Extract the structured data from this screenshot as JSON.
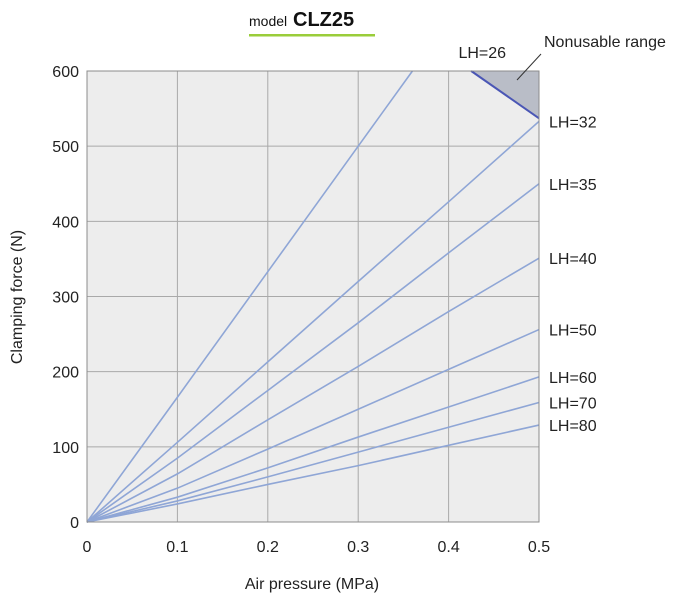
{
  "title": {
    "prefix": "model",
    "main": "CLZ25",
    "underline_color": "#9ACD3A"
  },
  "colors": {
    "plot_bg": "#EDEDED",
    "grid": "#A9A9A9",
    "line": "#8FA6D6",
    "boundary": "#4A56B5",
    "nonusable": "#B9BDC7"
  },
  "annotation": {
    "label": "Nonusable range"
  },
  "chart_data": {
    "type": "line",
    "title": "model CLZ25",
    "xlabel": "Air pressure  (MPa)",
    "ylabel": "Clamping force  (N)",
    "xlim": [
      0,
      0.5
    ],
    "ylim": [
      0,
      600
    ],
    "xticks": [
      "0",
      "0.1",
      "0.2",
      "0.3",
      "0.4",
      "0.5"
    ],
    "yticks": [
      "0",
      "100",
      "200",
      "300",
      "400",
      "500",
      "600"
    ],
    "grid": true,
    "series": [
      {
        "name": "LH=26",
        "x": [
          0,
          0.05,
          0.1,
          0.2,
          0.3,
          0.36
        ],
        "y": [
          0,
          83,
          166,
          333,
          500,
          600
        ]
      },
      {
        "name": "LH=32",
        "x": [
          0,
          0.1,
          0.2,
          0.3,
          0.4,
          0.5
        ],
        "y": [
          0,
          106,
          213,
          320,
          426,
          533
        ]
      },
      {
        "name": "LH=35",
        "x": [
          0,
          0.1,
          0.2,
          0.3,
          0.4,
          0.5
        ],
        "y": [
          0,
          85,
          175,
          265,
          358,
          450
        ]
      },
      {
        "name": "LH=40",
        "x": [
          0,
          0.1,
          0.2,
          0.3,
          0.4,
          0.5
        ],
        "y": [
          0,
          64,
          136,
          207,
          280,
          351
        ]
      },
      {
        "name": "LH=50",
        "x": [
          0,
          0.1,
          0.2,
          0.3,
          0.4,
          0.5
        ],
        "y": [
          0,
          45,
          97,
          150,
          203,
          256
        ]
      },
      {
        "name": "LH=60",
        "x": [
          0,
          0.1,
          0.2,
          0.3,
          0.4,
          0.5
        ],
        "y": [
          0,
          33,
          72,
          113,
          153,
          193
        ]
      },
      {
        "name": "LH=70",
        "x": [
          0,
          0.1,
          0.2,
          0.3,
          0.4,
          0.5
        ],
        "y": [
          0,
          28,
          60,
          93,
          126,
          159
        ]
      },
      {
        "name": "LH=80",
        "x": [
          0,
          0.1,
          0.2,
          0.3,
          0.4,
          0.5
        ],
        "y": [
          0,
          24,
          50,
          75,
          102,
          129
        ]
      }
    ],
    "nonusable_region": {
      "x": [
        0.425,
        0.5,
        0.5
      ],
      "y": [
        600,
        600,
        537
      ]
    }
  }
}
